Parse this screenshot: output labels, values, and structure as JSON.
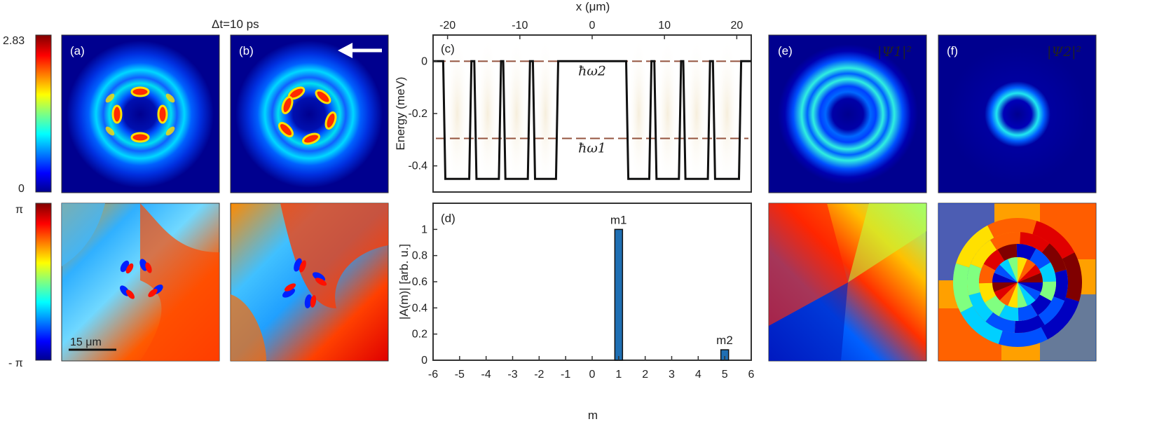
{
  "figure": {
    "time_label": "Δt=10 ps",
    "colorbar_amp": {
      "max_label": "2.83",
      "min_label": "0"
    },
    "colorbar_phase": {
      "max_label": "π",
      "min_label": "- π"
    },
    "scale_bar_label": "15 μm",
    "panels": {
      "a": "(a)",
      "b": "(b)",
      "c": "(c)",
      "d": "(d)",
      "e": "(e)",
      "f": "(f)"
    },
    "psi1_label": "|Ψ1|²",
    "psi2_label": "|Ψ2|²",
    "colors": {
      "dark_blue": "#00008f",
      "blue": "#0038ff",
      "cyan": "#10e8f0",
      "yellow": "#ffe000",
      "orange": "#ff6000",
      "red": "#d00000",
      "dark_red": "#800000",
      "bar": "#1f6fb3"
    }
  },
  "chart_data": [
    {
      "type": "line",
      "id": "c",
      "title": "",
      "xlabel": "x (μm)",
      "ylabel": "Energy (meV)",
      "xlim": [
        -22,
        22
      ],
      "ylim": [
        -0.5,
        0.1
      ],
      "xticks": [
        "-20",
        "-10",
        "0",
        "10",
        "20"
      ],
      "xtick_values": [
        -20,
        -10,
        0,
        10,
        20
      ],
      "yticks": [
        "0",
        "-0.2",
        "-0.4"
      ],
      "ytick_values": [
        0,
        -0.2,
        -0.4
      ],
      "series": [
        {
          "name": "potential",
          "x": [
            -22,
            -20.6,
            -20.3,
            -17.0,
            -16.7,
            -16.3,
            -16.0,
            -12.9,
            -12.6,
            -12.3,
            -12.0,
            -8.9,
            -8.6,
            -8.2,
            -7.9,
            -5.0,
            -4.7,
            4.7,
            5.0,
            7.9,
            8.2,
            8.6,
            8.9,
            12.0,
            12.3,
            12.6,
            12.9,
            16.0,
            16.3,
            16.7,
            17.0,
            20.3,
            20.6,
            22
          ],
          "values": [
            0,
            0,
            -0.45,
            -0.45,
            0,
            0,
            -0.45,
            -0.45,
            0,
            0,
            -0.45,
            -0.45,
            0,
            0,
            -0.45,
            -0.45,
            0,
            0,
            -0.45,
            -0.45,
            0,
            0,
            -0.45,
            -0.45,
            0,
            0,
            -0.45,
            -0.45,
            0,
            0,
            -0.45,
            -0.45,
            0,
            0
          ]
        }
      ],
      "energy_levels": [
        {
          "label": "ħω2",
          "value": 0
        },
        {
          "label": "ħω1",
          "value": -0.295
        }
      ]
    },
    {
      "type": "bar",
      "id": "d",
      "xlabel": "m",
      "ylabel": "|A(m)| [arb. u.]",
      "xlim": [
        -6,
        6
      ],
      "ylim": [
        0,
        1.2
      ],
      "xticks": [
        "-6",
        "-5",
        "-4",
        "-3",
        "-2",
        "-1",
        "0",
        "1",
        "2",
        "3",
        "4",
        "5",
        "6"
      ],
      "xtick_values": [
        -6,
        -5,
        -4,
        -3,
        -2,
        -1,
        0,
        1,
        2,
        3,
        4,
        5,
        6
      ],
      "yticks": [
        "0",
        "0.2",
        "0.4",
        "0.6",
        "0.8",
        "1"
      ],
      "ytick_values": [
        0,
        0.2,
        0.4,
        0.6,
        0.8,
        1
      ],
      "categories": [
        1,
        5
      ],
      "values": [
        1.0,
        0.08
      ],
      "bar_labels": [
        "m1",
        "m2"
      ]
    }
  ]
}
